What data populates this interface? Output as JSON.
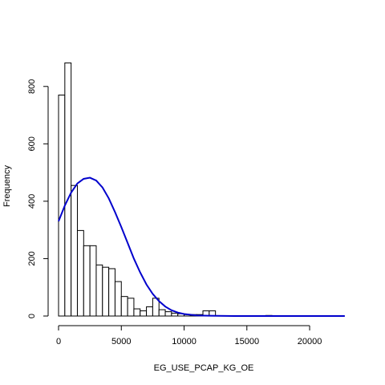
{
  "chart_data": {
    "type": "bar",
    "title": "",
    "xlabel": "EG_USE_PCAP_KG_OE",
    "ylabel": "Frequency",
    "xlim": [
      0,
      23000
    ],
    "ylim": [
      0,
      900
    ],
    "x_ticks": [
      0,
      5000,
      10000,
      15000,
      20000
    ],
    "x_tick_labels": [
      "0",
      "5000",
      "10000",
      "15000",
      "20000"
    ],
    "y_ticks": [
      0,
      200,
      400,
      600,
      800
    ],
    "y_tick_labels": [
      "0",
      "200",
      "400",
      "600",
      "800"
    ],
    "grid": false,
    "legend": "none",
    "bin_width": 500,
    "bin_start": 0,
    "values": [
      770,
      882,
      455,
      298,
      245,
      245,
      178,
      170,
      165,
      120,
      68,
      62,
      25,
      18,
      32,
      62,
      22,
      15,
      10,
      8,
      5,
      5,
      5,
      18,
      18,
      0,
      0,
      0,
      0,
      0,
      0,
      0,
      0,
      2,
      0,
      0,
      0,
      0,
      0,
      0,
      0,
      0,
      0,
      0,
      0
    ],
    "curve": {
      "type": "normal-density-overlay",
      "color": "#0000cc",
      "x": [
        0,
        500,
        1000,
        1500,
        2000,
        2500,
        3000,
        3500,
        4000,
        4500,
        5000,
        5500,
        6000,
        6500,
        7000,
        7500,
        8000,
        8500,
        9000,
        9500,
        10000,
        11000,
        12000,
        14000,
        17000,
        20000,
        22800
      ],
      "y": [
        330,
        385,
        430,
        462,
        478,
        482,
        472,
        448,
        410,
        362,
        310,
        255,
        200,
        152,
        110,
        77,
        52,
        33,
        20,
        12,
        7,
        2,
        1,
        0,
        0,
        0,
        0
      ]
    }
  }
}
